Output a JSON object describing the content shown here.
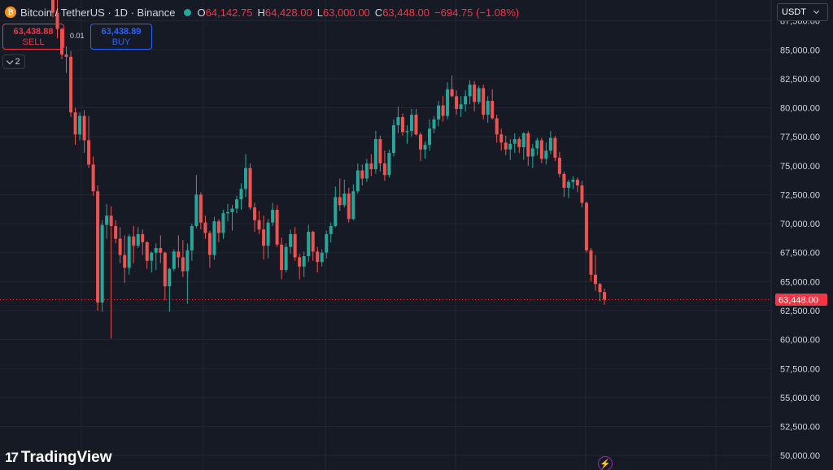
{
  "header": {
    "symbol": "Bitcoin / TetherUS · 1D · Binance",
    "coin_glyph": "₿",
    "open_label": "O",
    "open": "64,142.75",
    "high_label": "H",
    "high": "64,428.00",
    "low_label": "L",
    "low": "63,000.00",
    "close_label": "C",
    "close": "63,448.00",
    "change": "−694.75 (−1.08%)"
  },
  "trade": {
    "sell_price": "63,438.88",
    "sell_label": "SELL",
    "spread": "0.01",
    "buy_price": "63,438.89",
    "buy_label": "BUY"
  },
  "indicators_count": "2",
  "currency": "USDT",
  "brand": {
    "mark": "17",
    "name": "TradingView"
  },
  "colors": {
    "background": "#161a25",
    "up": "#26a69a",
    "down": "#ef5350",
    "grid": "#232632",
    "axis_text": "#d1d4dc",
    "price_line": "#f23645"
  },
  "chart_data": {
    "type": "candlestick",
    "title": "Bitcoin / TetherUS · 1D · Binance",
    "ylim": [
      48750,
      89300
    ],
    "y_ticks": [
      "50,000.00",
      "52,500.00",
      "55,000.00",
      "57,500.00",
      "60,000.00",
      "62,500.00",
      "65,000.00",
      "67,500.00",
      "70,000.00",
      "72,500.00",
      "75,000.00",
      "77,500.00",
      "80,000.00",
      "82,500.00",
      "85,000.00",
      "87,500.00"
    ],
    "last_price_label": "63,448.00",
    "last_price": 63448,
    "candles": [
      [
        91000,
        91500,
        87800,
        88200
      ],
      [
        88200,
        89800,
        86000,
        86800
      ],
      [
        86800,
        86900,
        84200,
        84600
      ],
      [
        84600,
        85300,
        83000,
        84400
      ],
      [
        84400,
        84900,
        79200,
        79600
      ],
      [
        79600,
        80000,
        76800,
        77700
      ],
      [
        77700,
        79600,
        77200,
        79300
      ],
      [
        79300,
        79800,
        76100,
        77200
      ],
      [
        77200,
        79300,
        74800,
        75100
      ],
      [
        75100,
        75800,
        72400,
        72800
      ],
      [
        72800,
        73300,
        62500,
        63200
      ],
      [
        63200,
        70300,
        62400,
        69900
      ],
      [
        69900,
        71700,
        68700,
        70700
      ],
      [
        70700,
        71500,
        60100,
        69800
      ],
      [
        69800,
        70300,
        68300,
        68700
      ],
      [
        68700,
        69700,
        66600,
        67300
      ],
      [
        67300,
        69000,
        64900,
        66200
      ],
      [
        66200,
        69100,
        65600,
        68900
      ],
      [
        68900,
        69800,
        66600,
        68100
      ],
      [
        68100,
        69700,
        67900,
        69100
      ],
      [
        69100,
        69500,
        67300,
        68400
      ],
      [
        68400,
        68500,
        66100,
        66800
      ],
      [
        66800,
        67600,
        65800,
        67500
      ],
      [
        67500,
        68300,
        66000,
        67900
      ],
      [
        67900,
        69000,
        66600,
        67500
      ],
      [
        67500,
        67600,
        63400,
        64600
      ],
      [
        64600,
        66200,
        62400,
        66100
      ],
      [
        66100,
        67800,
        65900,
        67600
      ],
      [
        67600,
        69000,
        66200,
        67100
      ],
      [
        67100,
        68600,
        65400,
        65900
      ],
      [
        65900,
        68300,
        63100,
        67700
      ],
      [
        67700,
        70000,
        66800,
        69800
      ],
      [
        69800,
        74200,
        69600,
        72500
      ],
      [
        72500,
        72700,
        69500,
        70100
      ],
      [
        70100,
        70700,
        68700,
        69200
      ],
      [
        69200,
        69400,
        66200,
        67300
      ],
      [
        67300,
        70600,
        66900,
        70200
      ],
      [
        70200,
        70400,
        68400,
        69200
      ],
      [
        69200,
        71200,
        68700,
        70900
      ],
      [
        70900,
        71700,
        70200,
        71000
      ],
      [
        71000,
        71600,
        69400,
        71300
      ],
      [
        71300,
        72400,
        70900,
        72100
      ],
      [
        72100,
        73500,
        71200,
        73000
      ],
      [
        73000,
        76000,
        72300,
        74800
      ],
      [
        74800,
        75200,
        71200,
        71400
      ],
      [
        71400,
        71800,
        69300,
        70300
      ],
      [
        70300,
        71100,
        69100,
        69500
      ],
      [
        69500,
        70700,
        66900,
        68100
      ],
      [
        68100,
        70400,
        67000,
        70100
      ],
      [
        70100,
        71800,
        69800,
        71200
      ],
      [
        71200,
        71600,
        68000,
        68200
      ],
      [
        68200,
        68800,
        65200,
        66000
      ],
      [
        66000,
        68300,
        65800,
        68000
      ],
      [
        68000,
        69500,
        67400,
        69100
      ],
      [
        69100,
        69700,
        66800,
        67100
      ],
      [
        67100,
        67400,
        65200,
        66300
      ],
      [
        66300,
        67600,
        65400,
        67200
      ],
      [
        67200,
        69900,
        66700,
        69300
      ],
      [
        69300,
        69400,
        66800,
        67600
      ],
      [
        67600,
        68000,
        65800,
        66700
      ],
      [
        66700,
        67800,
        66300,
        67500
      ],
      [
        67500,
        69400,
        67000,
        69100
      ],
      [
        69100,
        70100,
        68400,
        69800
      ],
      [
        69800,
        73200,
        69700,
        72300
      ],
      [
        72300,
        73900,
        71100,
        71600
      ],
      [
        71600,
        73800,
        71400,
        72600
      ],
      [
        72600,
        73100,
        70100,
        70400
      ],
      [
        70400,
        73400,
        70300,
        72800
      ],
      [
        72800,
        75200,
        72600,
        74600
      ],
      [
        74600,
        75100,
        73300,
        73900
      ],
      [
        73900,
        75600,
        73600,
        75200
      ],
      [
        75200,
        76000,
        74100,
        74700
      ],
      [
        74700,
        78000,
        74300,
        77300
      ],
      [
        77300,
        77600,
        74500,
        75200
      ],
      [
        75200,
        76300,
        73700,
        74200
      ],
      [
        74200,
        76400,
        74000,
        76100
      ],
      [
        76100,
        79000,
        75800,
        78500
      ],
      [
        78500,
        80100,
        77800,
        79200
      ],
      [
        79200,
        79500,
        77600,
        77900
      ],
      [
        77900,
        78500,
        76900,
        78000
      ],
      [
        78000,
        79900,
        77500,
        79400
      ],
      [
        79400,
        79900,
        77600,
        77700
      ],
      [
        77700,
        77900,
        75400,
        76400
      ],
      [
        76400,
        77100,
        75600,
        76800
      ],
      [
        76800,
        79000,
        76300,
        78200
      ],
      [
        78200,
        79300,
        77800,
        79000
      ],
      [
        79000,
        80600,
        78400,
        80200
      ],
      [
        80200,
        81000,
        78800,
        79300
      ],
      [
        79300,
        82200,
        79000,
        81600
      ],
      [
        81600,
        82800,
        80900,
        81000
      ],
      [
        81000,
        81500,
        79400,
        79900
      ],
      [
        79900,
        81000,
        79200,
        80300
      ],
      [
        80300,
        81500,
        79700,
        81000
      ],
      [
        81000,
        82400,
        80300,
        82000
      ],
      [
        82000,
        82300,
        79700,
        80500
      ],
      [
        80500,
        81900,
        80300,
        81700
      ],
      [
        81700,
        82000,
        79000,
        79400
      ],
      [
        79400,
        81000,
        78700,
        80600
      ],
      [
        80600,
        81600,
        79000,
        79100
      ],
      [
        79100,
        79400,
        77000,
        77700
      ],
      [
        77700,
        78200,
        76300,
        77000
      ],
      [
        77000,
        77600,
        75900,
        76400
      ],
      [
        76400,
        77300,
        75500,
        76900
      ],
      [
        76900,
        77800,
        76100,
        77300
      ],
      [
        77300,
        77500,
        76100,
        76600
      ],
      [
        76600,
        77900,
        75500,
        77800
      ],
      [
        77800,
        78000,
        75000,
        75800
      ],
      [
        75800,
        76900,
        74800,
        76500
      ],
      [
        76500,
        77400,
        75900,
        77200
      ],
      [
        77200,
        77400,
        75200,
        75600
      ],
      [
        75600,
        77000,
        75100,
        76300
      ],
      [
        76300,
        78000,
        76000,
        77400
      ],
      [
        77400,
        77600,
        75400,
        75700
      ],
      [
        75700,
        76200,
        74000,
        74300
      ],
      [
        74300,
        74500,
        72300,
        73100
      ],
      [
        73100,
        73800,
        72200,
        73600
      ],
      [
        73600,
        74100,
        73000,
        73800
      ],
      [
        73800,
        74000,
        72700,
        73300
      ],
      [
        73300,
        73700,
        71400,
        71800
      ],
      [
        71800,
        71900,
        67500,
        67700
      ],
      [
        67700,
        67900,
        65000,
        65600
      ],
      [
        65600,
        67300,
        64200,
        64800
      ],
      [
        64800,
        64900,
        63300,
        64100
      ],
      [
        64100,
        64400,
        63000,
        63448
      ]
    ]
  }
}
